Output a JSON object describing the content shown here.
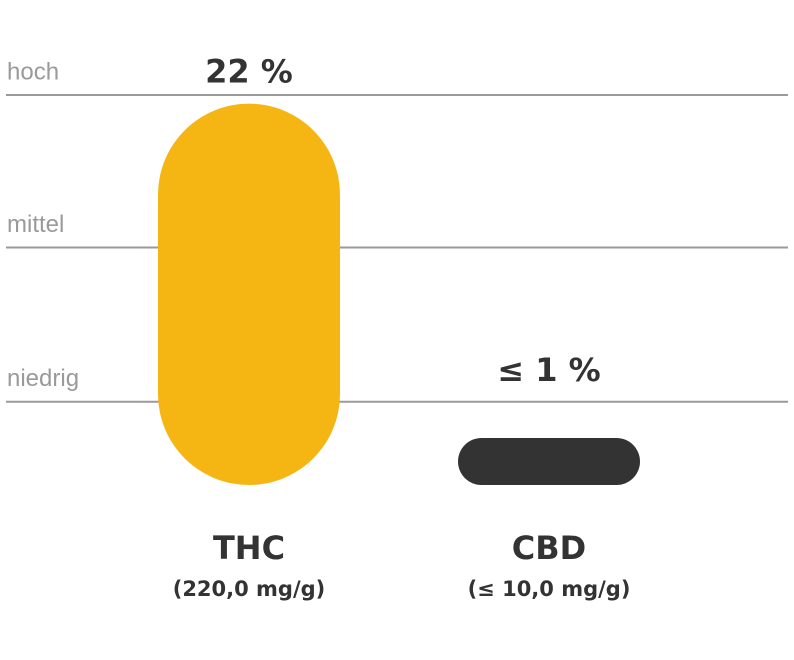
{
  "chart_data": {
    "type": "bar",
    "categories": [
      "THC",
      "CBD"
    ],
    "category_details": [
      "(220,0 mg/g)",
      "(≤ 10,0 mg/g)"
    ],
    "values": [
      22,
      1
    ],
    "value_labels": [
      "22 %",
      "≤ 1 %"
    ],
    "colors": [
      "#f5b614",
      "#333333"
    ],
    "ylim": [
      0,
      22.5
    ],
    "yticks": [
      {
        "value": 4.8,
        "label": "niedrig"
      },
      {
        "value": 13.7,
        "label": "mittel"
      },
      {
        "value": 22.5,
        "label": "hoch"
      }
    ],
    "grid": true
  }
}
